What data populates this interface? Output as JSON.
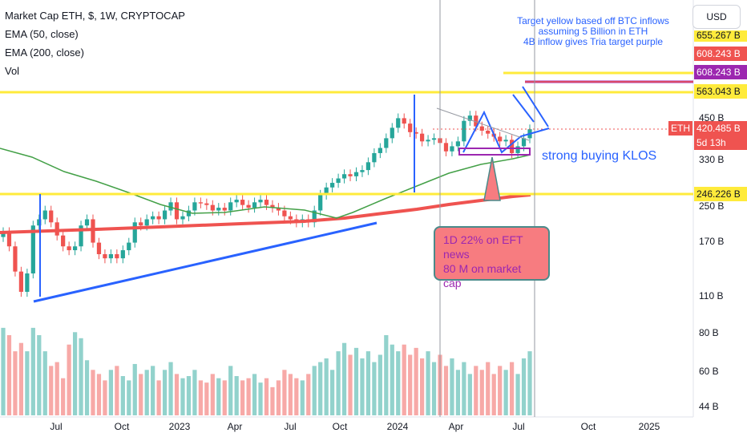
{
  "legend": {
    "title": "Market Cap ETH, $, 1W, CRYPTOCAP",
    "ema50": "EMA (50, close)",
    "ema200": "EMA (200, close)",
    "vol": "Vol"
  },
  "currency_button": "USD",
  "annotation_note": [
    "Target yellow based off BTC inflows",
    "assuming 5 Billion in ETH",
    "4B inflow gives Tria target purple"
  ],
  "annotation_buying": "strong buying KLOS",
  "callout": [
    "1D 22% on EFT news",
    "80 M on market cap"
  ],
  "price_labels": {
    "top_partial": "655.267 B",
    "purple": "608.243 B",
    "purple_repeat": "608.243 B",
    "yellow_high": "563.043 B",
    "eth_tag": "ETH",
    "current": "420.485 B",
    "countdown": "5d 13h",
    "yellow_low": "246.226 B"
  },
  "colors": {
    "up": "#26a69a",
    "down": "#ef5350",
    "ema50": "#43a047",
    "ema200": "#ef5350",
    "yellow": "#ffeb3b",
    "blue": "#2962ff",
    "purple": "#9c27b0"
  },
  "chart_data": {
    "type": "candlestick",
    "title": "Market Cap ETH, $, 1W, CRYPTOCAP",
    "y_scale": "log",
    "y_ticks": [
      "450 B",
      "330 B",
      "250 B",
      "170 B",
      "110 B",
      "80 B",
      "60 B",
      "44 B"
    ],
    "x_ticks": [
      "Jul",
      "Oct",
      "2023",
      "Apr",
      "Jul",
      "Oct",
      "2024",
      "Apr",
      "Jul",
      "Oct",
      "2025"
    ],
    "current_value_B": 420.485,
    "horizontal_levels_B": [
      563.043,
      246.226,
      608.243
    ],
    "close_series_B": [
      180,
      160,
      130,
      110,
      128,
      190,
      200,
      215,
      195,
      175,
      160,
      155,
      160,
      190,
      200,
      165,
      150,
      145,
      150,
      145,
      155,
      165,
      195,
      190,
      200,
      205,
      200,
      215,
      230,
      200,
      205,
      215,
      230,
      228,
      225,
      215,
      220,
      215,
      230,
      235,
      225,
      220,
      230,
      235,
      225,
      220,
      215,
      205,
      200,
      195,
      200,
      195,
      215,
      245,
      260,
      270,
      280,
      290,
      285,
      295,
      300,
      320,
      345,
      360,
      390,
      425,
      460,
      440,
      410,
      405,
      380,
      385,
      390,
      375,
      350,
      365,
      380,
      450,
      470,
      430,
      415,
      405,
      395,
      380,
      385,
      345,
      365,
      390,
      420
    ],
    "volume_B": [
      85,
      80,
      70,
      75,
      70,
      85,
      80,
      70,
      62,
      64,
      56,
      74,
      82,
      78,
      65,
      60,
      58,
      55,
      60,
      62,
      57,
      55,
      63,
      58,
      60,
      62,
      55,
      60,
      64,
      58,
      56,
      57,
      60,
      55,
      54,
      58,
      56,
      55,
      62,
      57,
      55,
      56,
      58,
      54,
      56,
      52,
      55,
      60,
      58,
      56,
      55,
      58,
      62,
      64,
      66,
      60,
      70,
      75,
      68,
      72,
      66,
      70,
      64,
      68,
      80,
      74,
      70,
      74,
      68,
      72,
      66,
      70,
      64,
      68,
      62,
      66,
      60,
      64,
      58,
      62,
      60,
      64,
      58,
      62,
      60,
      64,
      58,
      66,
      70
    ]
  }
}
